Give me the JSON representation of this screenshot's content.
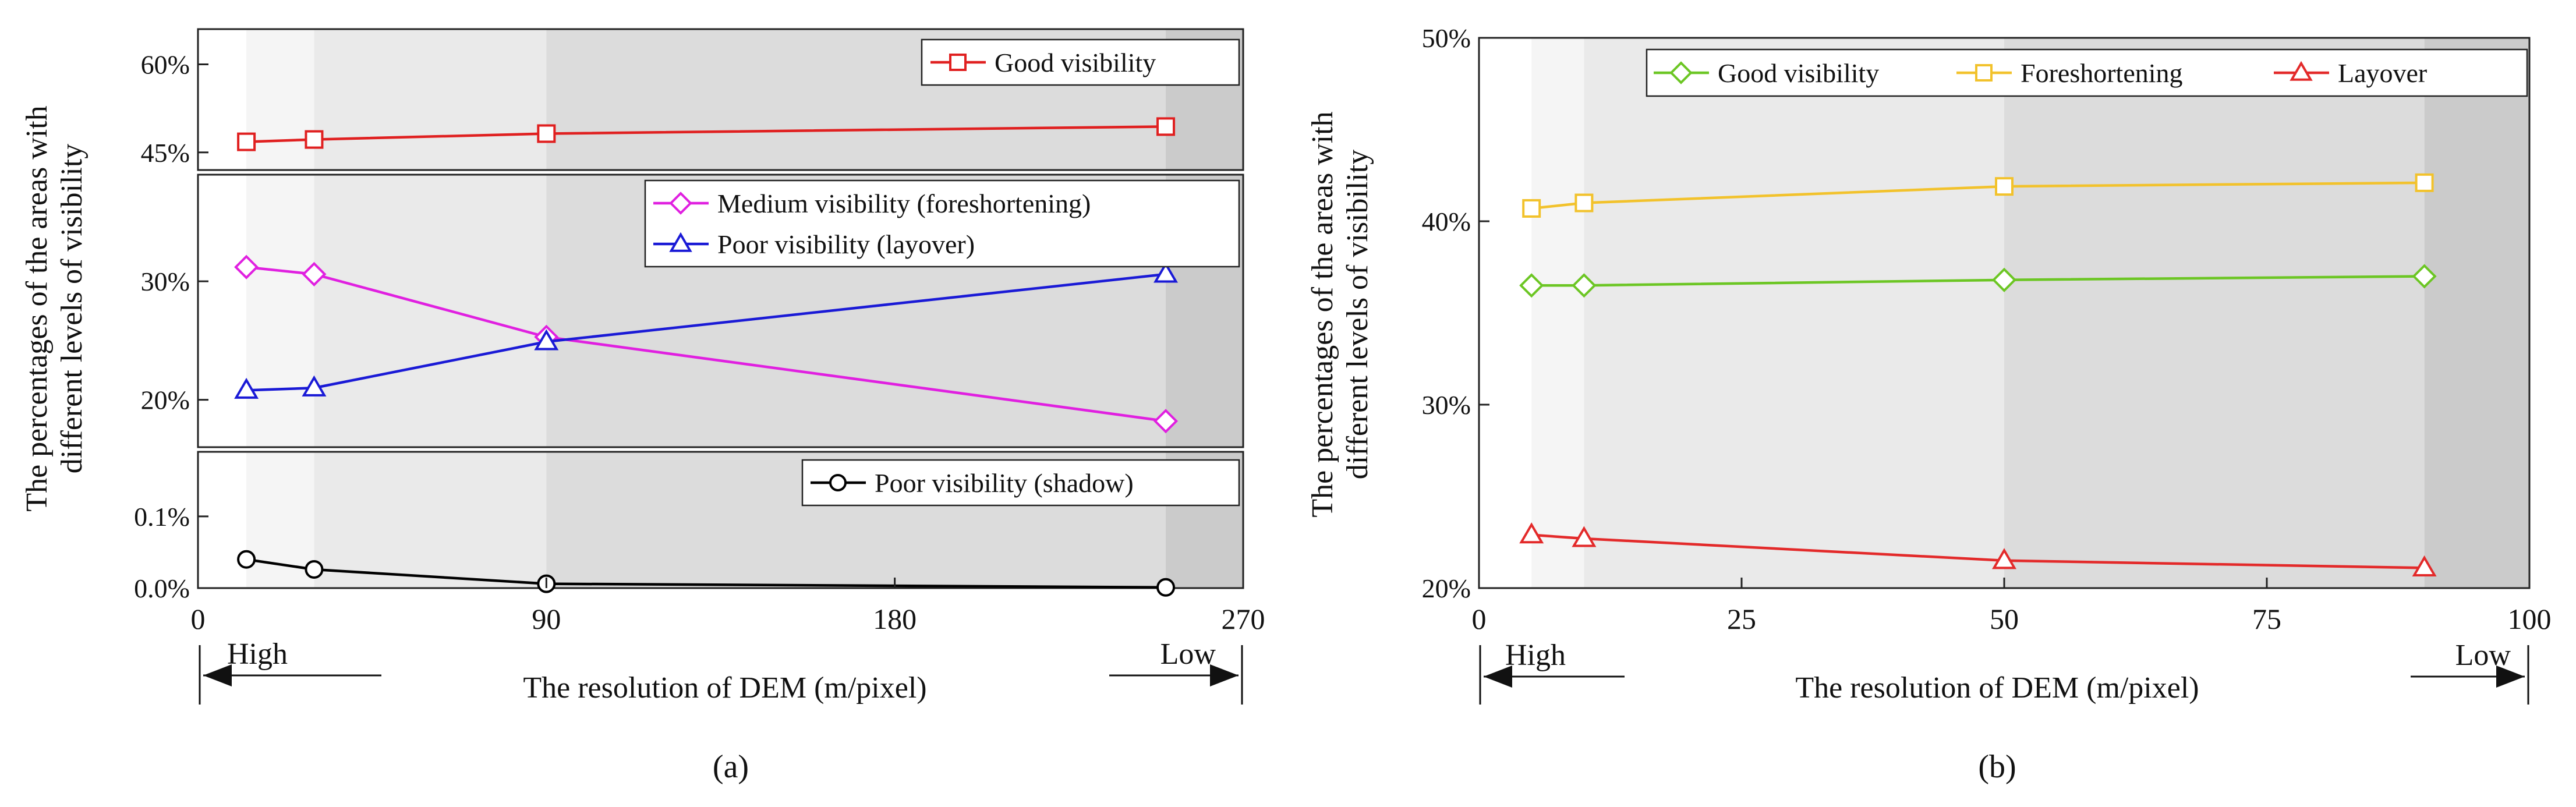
{
  "panels": [
    {
      "id": "a",
      "caption": "(a)",
      "y_axis_label_lines": [
        "The percentages of the areas with",
        "different levels of visibility"
      ],
      "x_axis_label": "The resolution of DEM (m/pixel)",
      "x_ticks": [
        0,
        90,
        180,
        270
      ],
      "x_tick_labels": [
        "0",
        "90",
        "180",
        "270"
      ],
      "xlim": [
        0,
        270
      ],
      "arrow_left_label": "High",
      "arrow_right_label": "Low",
      "shade_bands": [
        {
          "x0": 0,
          "x1": 12.5,
          "color": "#ffffff"
        },
        {
          "x0": 12.5,
          "x1": 30,
          "color": "#f5f5f5"
        },
        {
          "x0": 30,
          "x1": 90,
          "color": "#eaeaea"
        },
        {
          "x0": 90,
          "x1": 250,
          "color": "#dcdcdc"
        },
        {
          "x0": 250,
          "x1": 270,
          "color": "#cbcbcb"
        }
      ],
      "subplots": [
        {
          "ylim": [
            42,
            66
          ],
          "y_ticks": [
            45,
            60
          ],
          "y_tick_labels": [
            "45%",
            "60%"
          ],
          "legend": [
            "Good visibility"
          ],
          "series": [
            {
              "name": "Good visibility",
              "color": "#e02020",
              "marker": "square",
              "x": [
                12.5,
                30,
                90,
                250
              ],
              "y": [
                46.8,
                47.2,
                48.2,
                49.4
              ]
            }
          ]
        },
        {
          "ylim": [
            16,
            39
          ],
          "y_ticks": [
            20,
            30
          ],
          "y_tick_labels": [
            "20%",
            "30%"
          ],
          "legend": [
            "Medium visibility (foreshortening)",
            "Poor visibility (layover)"
          ],
          "series": [
            {
              "name": "Medium visibility (foreshortening)",
              "color": "#e020e0",
              "marker": "diamond",
              "x": [
                12.5,
                30,
                90,
                250
              ],
              "y": [
                31.2,
                30.6,
                25.3,
                18.2
              ]
            },
            {
              "name": "Poor visibility (layover)",
              "color": "#1a1ad6",
              "marker": "triangle",
              "x": [
                12.5,
                30,
                90,
                250
              ],
              "y": [
                20.8,
                21.0,
                24.9,
                30.6
              ]
            }
          ]
        },
        {
          "ylim": [
            0,
            0.19
          ],
          "y_ticks": [
            0.0,
            0.1
          ],
          "y_tick_labels": [
            "0.0%",
            "0.1%"
          ],
          "legend": [
            "Poor visibility (shadow)"
          ],
          "series": [
            {
              "name": "Poor visibility (shadow)",
              "color": "#000000",
              "marker": "circle",
              "x": [
                12.5,
                30,
                90,
                250
              ],
              "y": [
                0.04,
                0.026,
                0.006,
                0.001
              ]
            }
          ]
        }
      ]
    },
    {
      "id": "b",
      "caption": "(b)",
      "y_axis_label_lines": [
        "The percentages of the areas with",
        "different levels of visibility"
      ],
      "x_axis_label": "The resolution of DEM (m/pixel)",
      "x_ticks": [
        0,
        25,
        50,
        75,
        100
      ],
      "x_tick_labels": [
        "0",
        "25",
        "50",
        "75",
        "100"
      ],
      "xlim": [
        0,
        100
      ],
      "arrow_left_label": "High",
      "arrow_right_label": "Low",
      "shade_bands": [
        {
          "x0": 0,
          "x1": 5,
          "color": "#ffffff"
        },
        {
          "x0": 5,
          "x1": 10,
          "color": "#f5f5f5"
        },
        {
          "x0": 10,
          "x1": 50,
          "color": "#eaeaea"
        },
        {
          "x0": 50,
          "x1": 90,
          "color": "#dcdcdc"
        },
        {
          "x0": 90,
          "x1": 100,
          "color": "#cbcbcb"
        }
      ],
      "ylim": [
        20,
        50
      ],
      "y_ticks": [
        20,
        30,
        40,
        50
      ],
      "y_tick_labels": [
        "20%",
        "30%",
        "40%",
        "50%"
      ],
      "legend": [
        "Good visibility",
        "Foreshortening",
        "Layover"
      ],
      "series": [
        {
          "name": "Good visibility",
          "color": "#6cc624",
          "marker": "diamond",
          "x": [
            5,
            10,
            50,
            90
          ],
          "y": [
            36.5,
            36.5,
            36.8,
            37.0
          ]
        },
        {
          "name": "Foreshortening",
          "color": "#f2c22c",
          "marker": "square",
          "x": [
            5,
            10,
            50,
            90
          ],
          "y": [
            40.7,
            41.0,
            41.9,
            42.1
          ]
        },
        {
          "name": "Layover",
          "color": "#e32a2a",
          "marker": "triangle",
          "x": [
            5,
            10,
            50,
            90
          ],
          "y": [
            22.9,
            22.7,
            21.5,
            21.1
          ]
        }
      ]
    }
  ]
}
